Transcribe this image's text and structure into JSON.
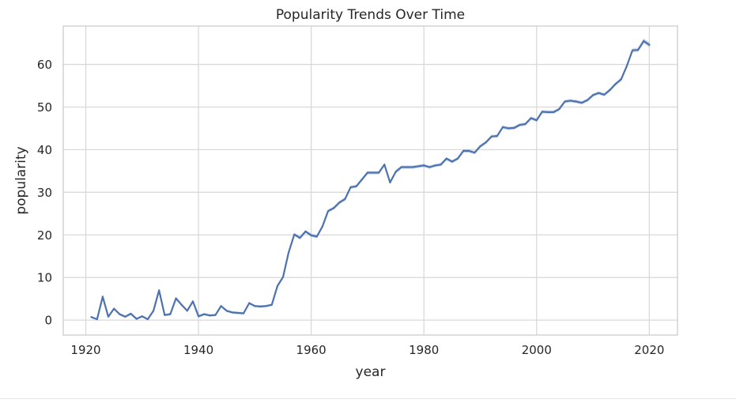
{
  "chart_data": {
    "type": "line",
    "title": "Popularity Trends Over Time",
    "xlabel": "year",
    "ylabel": "popularity",
    "xlim": [
      1916,
      2025
    ],
    "ylim": [
      -3.5,
      69
    ],
    "xticks": [
      1920,
      1940,
      1960,
      1980,
      2000,
      2020
    ],
    "yticks": [
      0,
      10,
      20,
      30,
      40,
      50,
      60
    ],
    "grid": true,
    "legend": "none",
    "series": [
      {
        "color": "#4c72b0",
        "x": [
          1921,
          1922,
          1923,
          1924,
          1925,
          1926,
          1927,
          1928,
          1929,
          1930,
          1931,
          1932,
          1933,
          1934,
          1935,
          1936,
          1937,
          1938,
          1939,
          1940,
          1941,
          1942,
          1943,
          1944,
          1945,
          1946,
          1947,
          1948,
          1949,
          1950,
          1951,
          1952,
          1953,
          1954,
          1955,
          1956,
          1957,
          1958,
          1959,
          1960,
          1961,
          1962,
          1963,
          1964,
          1965,
          1966,
          1967,
          1968,
          1969,
          1970,
          1971,
          1972,
          1973,
          1974,
          1975,
          1976,
          1977,
          1978,
          1979,
          1980,
          1981,
          1982,
          1983,
          1984,
          1985,
          1986,
          1987,
          1988,
          1989,
          1990,
          1991,
          1992,
          1993,
          1994,
          1995,
          1996,
          1997,
          1998,
          1999,
          2000,
          2001,
          2002,
          2003,
          2004,
          2005,
          2006,
          2007,
          2008,
          2009,
          2010,
          2011,
          2012,
          2013,
          2014,
          2015,
          2016,
          2017,
          2018,
          2019,
          2020
        ],
        "y": [
          0.7,
          0.2,
          5.5,
          0.8,
          2.7,
          1.4,
          0.8,
          1.5,
          0.3,
          0.9,
          0.2,
          2.2,
          7.0,
          1.2,
          1.4,
          5.1,
          3.6,
          2.2,
          4.4,
          0.9,
          1.4,
          1.1,
          1.2,
          3.3,
          2.2,
          1.8,
          1.7,
          1.6,
          4.0,
          3.3,
          3.2,
          3.3,
          3.6,
          8.0,
          10.1,
          15.9,
          20.1,
          19.3,
          20.8,
          19.9,
          19.6,
          22.0,
          25.6,
          26.3,
          27.6,
          28.4,
          31.2,
          31.4,
          33.0,
          34.6,
          34.6,
          34.6,
          36.5,
          32.3,
          34.8,
          35.9,
          35.9,
          35.9,
          36.1,
          36.3,
          35.9,
          36.3,
          36.5,
          37.9,
          37.2,
          37.9,
          39.7,
          39.7,
          39.3,
          40.8,
          41.7,
          43.1,
          43.2,
          45.3,
          45.0,
          45.1,
          45.8,
          46.0,
          47.4,
          46.9,
          48.9,
          48.8,
          48.8,
          49.5,
          51.3,
          51.5,
          51.3,
          51.0,
          51.6,
          52.8,
          53.3,
          52.9,
          54.0,
          55.4,
          56.5,
          59.6,
          63.3,
          63.4,
          65.5,
          64.6
        ],
        "ci": [
          0.2,
          0.2,
          0.6,
          0.3,
          0.3,
          0.3,
          0.3,
          0.3,
          0.2,
          0.3,
          0.2,
          0.3,
          0.5,
          0.3,
          0.3,
          0.4,
          0.3,
          0.3,
          0.3,
          0.3,
          0.3,
          0.3,
          0.3,
          0.3,
          0.3,
          0.3,
          0.3,
          0.3,
          0.3,
          0.3,
          0.3,
          0.3,
          0.3,
          0.4,
          0.4,
          0.4,
          0.4,
          0.4,
          0.4,
          0.4,
          0.4,
          0.4,
          0.4,
          0.4,
          0.4,
          0.4,
          0.4,
          0.4,
          0.4,
          0.4,
          0.4,
          0.4,
          0.4,
          0.4,
          0.4,
          0.4,
          0.4,
          0.4,
          0.4,
          0.4,
          0.4,
          0.4,
          0.4,
          0.4,
          0.4,
          0.4,
          0.4,
          0.4,
          0.4,
          0.4,
          0.4,
          0.4,
          0.4,
          0.4,
          0.4,
          0.4,
          0.4,
          0.4,
          0.4,
          0.4,
          0.4,
          0.4,
          0.4,
          0.4,
          0.4,
          0.4,
          0.4,
          0.4,
          0.4,
          0.4,
          0.4,
          0.4,
          0.4,
          0.4,
          0.5,
          0.5,
          0.5,
          0.5,
          0.6,
          0.6
        ]
      }
    ]
  }
}
